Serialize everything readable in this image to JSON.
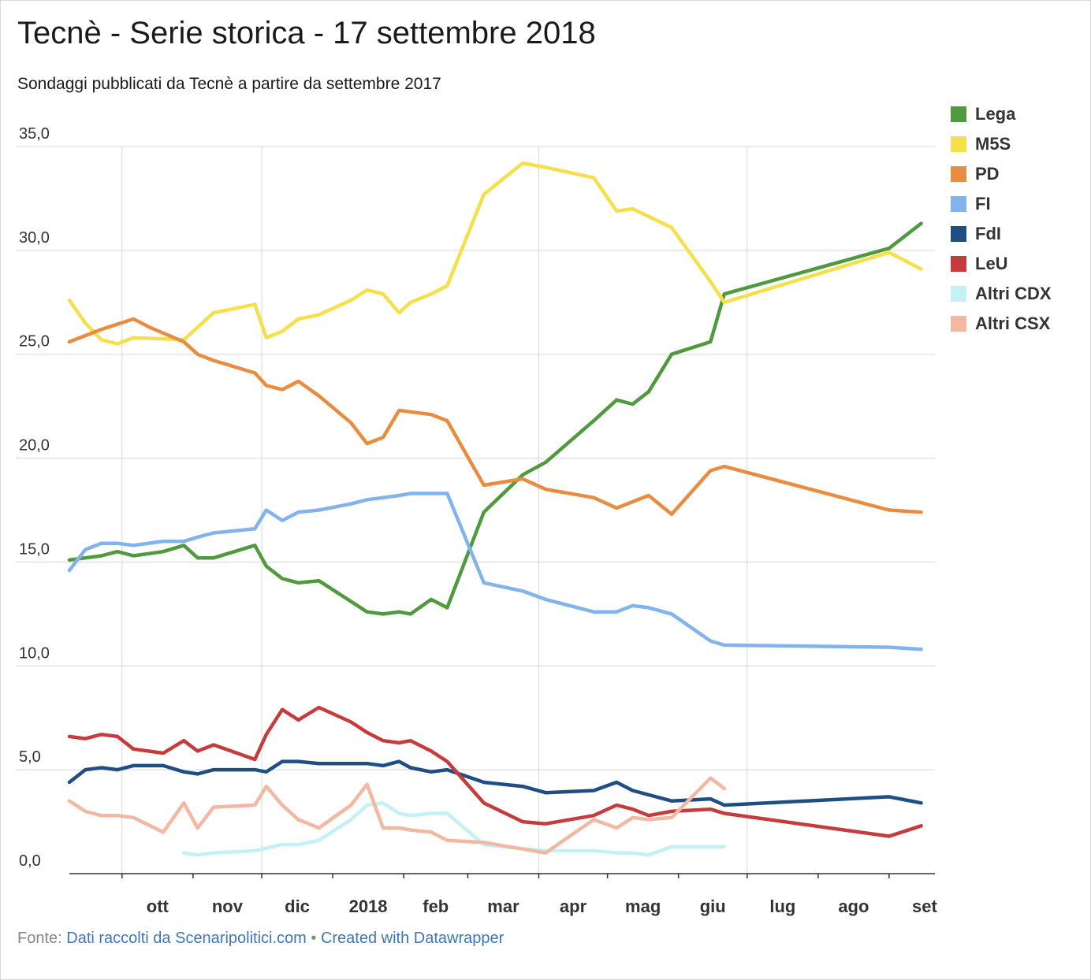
{
  "title": "Tecnè - Serie storica - 17 settembre 2018",
  "subtitle": "Sondaggi pubblicati da Tecnè a partire da settembre 2017",
  "footer": {
    "prefix": "Fonte: ",
    "source_link": "Dati raccolti da Scenaripolitici.com",
    "separator": " • ",
    "credit_link": "Created with Datawrapper"
  },
  "chart_data": {
    "type": "line",
    "title": "Tecnè - Serie storica - 17 settembre 2018",
    "subtitle": "Sondaggi pubblicati da Tecnè a partire da settembre 2017",
    "xlabel": "",
    "ylabel": "",
    "ylim": [
      0,
      35
    ],
    "xlim": [
      "2017-09-08",
      "2018-09-21"
    ],
    "yticks": [
      "0,0",
      "5,0",
      "10,0",
      "15,0",
      "20,0",
      "25,0",
      "30,0",
      "35,0"
    ],
    "ytick_values": [
      0,
      5,
      10,
      15,
      20,
      25,
      30,
      35
    ],
    "xticks": [
      {
        "label": "ott",
        "date": "2017-10-01"
      },
      {
        "label": "nov",
        "date": "2017-11-01"
      },
      {
        "label": "dic",
        "date": "2017-12-01"
      },
      {
        "label": "2018",
        "date": "2018-01-01"
      },
      {
        "label": "feb",
        "date": "2018-02-01"
      },
      {
        "label": "mar",
        "date": "2018-03-01"
      },
      {
        "label": "apr",
        "date": "2018-04-01"
      },
      {
        "label": "mag",
        "date": "2018-05-01"
      },
      {
        "label": "giu",
        "date": "2018-06-01"
      },
      {
        "label": "lug",
        "date": "2018-07-01"
      },
      {
        "label": "ago",
        "date": "2018-08-01"
      },
      {
        "label": "set",
        "date": "2018-09-01"
      }
    ],
    "vertical_gridlines": [
      "2017-10-01",
      "2017-12-01",
      "2018-04-01",
      "2018-07-01"
    ],
    "horizontal_grid": true,
    "legend_position": "right",
    "gaps": [
      {
        "from": "2018-02-16",
        "to": "2018-03-03",
        "style": "dashed"
      }
    ],
    "series": [
      {
        "name": "Lega",
        "color": "#4f9a3c",
        "points": [
          [
            "2017-09-08",
            15.1
          ],
          [
            "2017-09-15",
            15.2
          ],
          [
            "2017-09-22",
            15.3
          ],
          [
            "2017-09-29",
            15.5
          ],
          [
            "2017-10-06",
            15.3
          ],
          [
            "2017-10-19",
            15.5
          ],
          [
            "2017-10-28",
            15.8
          ],
          [
            "2017-11-03",
            15.2
          ],
          [
            "2017-11-10",
            15.2
          ],
          [
            "2017-11-28",
            15.8
          ],
          [
            "2017-12-03",
            14.8
          ],
          [
            "2017-12-10",
            14.2
          ],
          [
            "2017-12-17",
            14.0
          ],
          [
            "2017-12-26",
            14.1
          ],
          [
            "2018-01-09",
            13.1
          ],
          [
            "2018-01-16",
            12.6
          ],
          [
            "2018-01-23",
            12.5
          ],
          [
            "2018-01-30",
            12.6
          ],
          [
            "2018-02-04",
            12.5
          ],
          [
            "2018-02-13",
            13.2
          ],
          [
            "2018-02-20",
            12.8
          ],
          [
            "2018-03-08",
            17.4
          ],
          [
            "2018-03-25",
            19.2
          ],
          [
            "2018-04-04",
            19.8
          ],
          [
            "2018-04-25",
            21.8
          ],
          [
            "2018-05-05",
            22.8
          ],
          [
            "2018-05-12",
            22.6
          ],
          [
            "2018-05-19",
            23.2
          ],
          [
            "2018-05-29",
            25.0
          ],
          [
            "2018-06-15",
            25.6
          ],
          [
            "2018-06-21",
            27.9
          ],
          [
            "2018-09-01",
            30.1
          ],
          [
            "2018-09-15",
            31.3
          ]
        ]
      },
      {
        "name": "M5S",
        "color": "#f5e04b",
        "points": [
          [
            "2017-09-08",
            27.6
          ],
          [
            "2017-09-15",
            26.5
          ],
          [
            "2017-09-22",
            25.7
          ],
          [
            "2017-09-29",
            25.5
          ],
          [
            "2017-10-06",
            25.8
          ],
          [
            "2017-10-28",
            25.7
          ],
          [
            "2017-11-03",
            26.3
          ],
          [
            "2017-11-10",
            27.0
          ],
          [
            "2017-11-28",
            27.4
          ],
          [
            "2017-12-03",
            25.8
          ],
          [
            "2017-12-10",
            26.1
          ],
          [
            "2017-12-17",
            26.7
          ],
          [
            "2017-12-26",
            26.9
          ],
          [
            "2018-01-09",
            27.6
          ],
          [
            "2018-01-16",
            28.1
          ],
          [
            "2018-01-23",
            27.9
          ],
          [
            "2018-01-30",
            27.0
          ],
          [
            "2018-02-04",
            27.5
          ],
          [
            "2018-02-13",
            27.9
          ],
          [
            "2018-02-20",
            28.3
          ],
          [
            "2018-03-08",
            32.7
          ],
          [
            "2018-03-25",
            34.2
          ],
          [
            "2018-04-04",
            34.0
          ],
          [
            "2018-04-25",
            33.5
          ],
          [
            "2018-05-05",
            31.9
          ],
          [
            "2018-05-12",
            32.0
          ],
          [
            "2018-05-29",
            31.1
          ],
          [
            "2018-06-15",
            28.5
          ],
          [
            "2018-06-21",
            27.5
          ],
          [
            "2018-09-01",
            29.9
          ],
          [
            "2018-09-15",
            29.1
          ]
        ]
      },
      {
        "name": "PD",
        "color": "#e98c3f",
        "points": [
          [
            "2017-09-08",
            25.6
          ],
          [
            "2017-09-22",
            26.2
          ],
          [
            "2017-10-06",
            26.7
          ],
          [
            "2017-10-13",
            26.3
          ],
          [
            "2017-10-28",
            25.6
          ],
          [
            "2017-11-03",
            25.0
          ],
          [
            "2017-11-10",
            24.7
          ],
          [
            "2017-11-28",
            24.1
          ],
          [
            "2017-12-03",
            23.5
          ],
          [
            "2017-12-10",
            23.3
          ],
          [
            "2017-12-17",
            23.7
          ],
          [
            "2017-12-26",
            23.0
          ],
          [
            "2018-01-09",
            21.7
          ],
          [
            "2018-01-16",
            20.7
          ],
          [
            "2018-01-23",
            21.0
          ],
          [
            "2018-01-30",
            22.3
          ],
          [
            "2018-02-13",
            22.1
          ],
          [
            "2018-02-20",
            21.8
          ],
          [
            "2018-03-08",
            18.7
          ],
          [
            "2018-03-25",
            19.0
          ],
          [
            "2018-04-04",
            18.5
          ],
          [
            "2018-04-25",
            18.1
          ],
          [
            "2018-05-05",
            17.6
          ],
          [
            "2018-05-19",
            18.2
          ],
          [
            "2018-05-29",
            17.3
          ],
          [
            "2018-06-15",
            19.4
          ],
          [
            "2018-06-21",
            19.6
          ],
          [
            "2018-09-01",
            17.5
          ],
          [
            "2018-09-15",
            17.4
          ]
        ]
      },
      {
        "name": "FI",
        "color": "#82b3ec",
        "points": [
          [
            "2017-09-08",
            14.6
          ],
          [
            "2017-09-15",
            15.6
          ],
          [
            "2017-09-22",
            15.9
          ],
          [
            "2017-09-29",
            15.9
          ],
          [
            "2017-10-06",
            15.8
          ],
          [
            "2017-10-19",
            16.0
          ],
          [
            "2017-10-28",
            16.0
          ],
          [
            "2017-11-03",
            16.2
          ],
          [
            "2017-11-10",
            16.4
          ],
          [
            "2017-11-28",
            16.6
          ],
          [
            "2017-12-03",
            17.5
          ],
          [
            "2017-12-10",
            17.0
          ],
          [
            "2017-12-17",
            17.4
          ],
          [
            "2017-12-26",
            17.5
          ],
          [
            "2018-01-09",
            17.8
          ],
          [
            "2018-01-16",
            18.0
          ],
          [
            "2018-01-23",
            18.1
          ],
          [
            "2018-01-30",
            18.2
          ],
          [
            "2018-02-04",
            18.3
          ],
          [
            "2018-02-13",
            18.3
          ],
          [
            "2018-02-20",
            18.3
          ],
          [
            "2018-03-08",
            14.0
          ],
          [
            "2018-03-25",
            13.6
          ],
          [
            "2018-04-04",
            13.2
          ],
          [
            "2018-04-25",
            12.6
          ],
          [
            "2018-05-05",
            12.6
          ],
          [
            "2018-05-12",
            12.9
          ],
          [
            "2018-05-19",
            12.8
          ],
          [
            "2018-05-29",
            12.5
          ],
          [
            "2018-06-15",
            11.2
          ],
          [
            "2018-06-21",
            11.0
          ],
          [
            "2018-09-01",
            10.9
          ],
          [
            "2018-09-15",
            10.8
          ]
        ]
      },
      {
        "name": "FdI",
        "color": "#1f4e85",
        "points": [
          [
            "2017-09-08",
            4.4
          ],
          [
            "2017-09-15",
            5.0
          ],
          [
            "2017-09-22",
            5.1
          ],
          [
            "2017-09-29",
            5.0
          ],
          [
            "2017-10-06",
            5.2
          ],
          [
            "2017-10-19",
            5.2
          ],
          [
            "2017-10-28",
            4.9
          ],
          [
            "2017-11-03",
            4.8
          ],
          [
            "2017-11-10",
            5.0
          ],
          [
            "2017-11-28",
            5.0
          ],
          [
            "2017-12-03",
            4.9
          ],
          [
            "2017-12-10",
            5.4
          ],
          [
            "2017-12-17",
            5.4
          ],
          [
            "2017-12-26",
            5.3
          ],
          [
            "2018-01-09",
            5.3
          ],
          [
            "2018-01-16",
            5.3
          ],
          [
            "2018-01-23",
            5.2
          ],
          [
            "2018-01-30",
            5.4
          ],
          [
            "2018-02-04",
            5.1
          ],
          [
            "2018-02-13",
            4.9
          ],
          [
            "2018-02-20",
            5.0
          ],
          [
            "2018-03-08",
            4.4
          ],
          [
            "2018-03-25",
            4.2
          ],
          [
            "2018-04-04",
            3.9
          ],
          [
            "2018-04-25",
            4.0
          ],
          [
            "2018-05-05",
            4.4
          ],
          [
            "2018-05-12",
            4.0
          ],
          [
            "2018-05-29",
            3.5
          ],
          [
            "2018-06-15",
            3.6
          ],
          [
            "2018-06-21",
            3.3
          ],
          [
            "2018-09-01",
            3.7
          ],
          [
            "2018-09-15",
            3.4
          ]
        ]
      },
      {
        "name": "LeU",
        "color": "#c63b3b",
        "points": [
          [
            "2017-09-08",
            6.6
          ],
          [
            "2017-09-15",
            6.5
          ],
          [
            "2017-09-22",
            6.7
          ],
          [
            "2017-09-29",
            6.6
          ],
          [
            "2017-10-06",
            6.0
          ],
          [
            "2017-10-19",
            5.8
          ],
          [
            "2017-10-28",
            6.4
          ],
          [
            "2017-11-03",
            5.9
          ],
          [
            "2017-11-10",
            6.2
          ],
          [
            "2017-11-28",
            5.5
          ],
          [
            "2017-12-03",
            6.7
          ],
          [
            "2017-12-10",
            7.9
          ],
          [
            "2017-12-17",
            7.4
          ],
          [
            "2017-12-26",
            8.0
          ],
          [
            "2018-01-09",
            7.3
          ],
          [
            "2018-01-16",
            6.8
          ],
          [
            "2018-01-23",
            6.4
          ],
          [
            "2018-01-30",
            6.3
          ],
          [
            "2018-02-04",
            6.4
          ],
          [
            "2018-02-13",
            5.9
          ],
          [
            "2018-02-20",
            5.4
          ],
          [
            "2018-03-08",
            3.4
          ],
          [
            "2018-03-25",
            2.5
          ],
          [
            "2018-04-04",
            2.4
          ],
          [
            "2018-04-25",
            2.8
          ],
          [
            "2018-05-05",
            3.3
          ],
          [
            "2018-05-12",
            3.1
          ],
          [
            "2018-05-19",
            2.8
          ],
          [
            "2018-05-29",
            3.0
          ],
          [
            "2018-06-15",
            3.1
          ],
          [
            "2018-06-21",
            2.9
          ],
          [
            "2018-09-01",
            1.8
          ],
          [
            "2018-09-15",
            2.3
          ]
        ]
      },
      {
        "name": "Altri CDX",
        "color": "#c4f0f7",
        "points": [
          [
            "2017-10-28",
            1.0
          ],
          [
            "2017-11-03",
            0.9
          ],
          [
            "2017-11-10",
            1.0
          ],
          [
            "2017-11-28",
            1.1
          ],
          [
            "2017-12-10",
            1.4
          ],
          [
            "2017-12-17",
            1.4
          ],
          [
            "2017-12-26",
            1.6
          ],
          [
            "2018-01-09",
            2.6
          ],
          [
            "2018-01-16",
            3.3
          ],
          [
            "2018-01-23",
            3.4
          ],
          [
            "2018-01-30",
            2.9
          ],
          [
            "2018-02-04",
            2.8
          ],
          [
            "2018-02-13",
            2.9
          ],
          [
            "2018-02-20",
            2.9
          ],
          [
            "2018-03-08",
            1.4
          ],
          [
            "2018-03-25",
            1.2
          ],
          [
            "2018-04-04",
            1.1
          ],
          [
            "2018-04-25",
            1.1
          ],
          [
            "2018-05-05",
            1.0
          ],
          [
            "2018-05-12",
            1.0
          ],
          [
            "2018-05-19",
            0.9
          ],
          [
            "2018-05-29",
            1.3
          ],
          [
            "2018-06-15",
            1.3
          ],
          [
            "2018-06-21",
            1.3
          ]
        ]
      },
      {
        "name": "Altri CSX",
        "color": "#f2b8a2",
        "points": [
          [
            "2017-09-08",
            3.5
          ],
          [
            "2017-09-15",
            3.0
          ],
          [
            "2017-09-22",
            2.8
          ],
          [
            "2017-09-29",
            2.8
          ],
          [
            "2017-10-06",
            2.7
          ],
          [
            "2017-10-19",
            2.0
          ],
          [
            "2017-10-28",
            3.4
          ],
          [
            "2017-11-03",
            2.2
          ],
          [
            "2017-11-10",
            3.2
          ],
          [
            "2017-11-28",
            3.3
          ],
          [
            "2017-12-03",
            4.2
          ],
          [
            "2017-12-10",
            3.3
          ],
          [
            "2017-12-17",
            2.6
          ],
          [
            "2017-12-26",
            2.2
          ],
          [
            "2018-01-09",
            3.3
          ],
          [
            "2018-01-16",
            4.3
          ],
          [
            "2018-01-23",
            2.2
          ],
          [
            "2018-01-30",
            2.2
          ],
          [
            "2018-02-04",
            2.1
          ],
          [
            "2018-02-13",
            2.0
          ],
          [
            "2018-02-20",
            1.6
          ],
          [
            "2018-03-08",
            1.5
          ],
          [
            "2018-04-04",
            1.0
          ],
          [
            "2018-04-25",
            2.6
          ],
          [
            "2018-05-05",
            2.2
          ],
          [
            "2018-05-12",
            2.7
          ],
          [
            "2018-05-19",
            2.6
          ],
          [
            "2018-05-29",
            2.7
          ],
          [
            "2018-06-15",
            4.6
          ],
          [
            "2018-06-21",
            4.1
          ]
        ]
      }
    ]
  }
}
